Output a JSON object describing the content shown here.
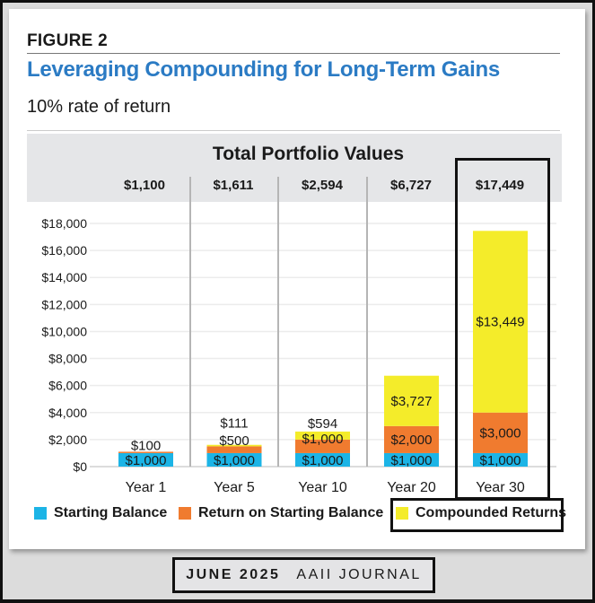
{
  "figure_label": "FIGURE 2",
  "title": "Leveraging Compounding for Long-Term Gains",
  "subtitle": "10% rate of return",
  "footer": {
    "issue": "JUNE 2025",
    "publication": "AAII JOURNAL"
  },
  "colors": {
    "starting_balance": "#1cb4e6",
    "return_on_starting": "#f07b2f",
    "compounded": "#f4ec2a",
    "title_blue": "#2b7bc4"
  },
  "chart_data": {
    "type": "bar",
    "stacked": true,
    "title": "Total Portfolio Values",
    "categories": [
      "Year 1",
      "Year 5",
      "Year 10",
      "Year 20",
      "Year 30"
    ],
    "totals": [
      "$1,100",
      "$1,611",
      "$2,594",
      "$6,727",
      "$17,449"
    ],
    "series": [
      {
        "name": "Starting Balance",
        "color": "#1cb4e6",
        "values": [
          1000,
          1000,
          1000,
          1000,
          1000
        ],
        "labels": [
          "$1,000",
          "$1,000",
          "$1,000",
          "$1,000",
          "$1,000"
        ]
      },
      {
        "name": "Return on Starting Balance",
        "color": "#f07b2f",
        "values": [
          100,
          500,
          1000,
          2000,
          3000
        ],
        "labels": [
          "$100",
          "$500",
          "$1,000",
          "$2,000",
          "$3,000"
        ]
      },
      {
        "name": "Compounded Returns",
        "color": "#f4ec2a",
        "values": [
          0,
          111,
          594,
          3727,
          13449
        ],
        "labels": [
          "",
          "$111",
          "$594",
          "$3,727",
          "$13,449"
        ]
      }
    ],
    "yticks": [
      0,
      2000,
      4000,
      6000,
      8000,
      10000,
      12000,
      14000,
      16000,
      18000
    ],
    "ytick_labels": [
      "$0",
      "$2,000",
      "$4,000",
      "$6,000",
      "$8,000",
      "$10,000",
      "$12,000",
      "$14,000",
      "$16,000",
      "$18,000"
    ],
    "ylim": [
      0,
      18000
    ],
    "xlabel": "",
    "ylabel": "",
    "grid": true,
    "legend_position": "bottom",
    "highlighted_category": "Year 30",
    "highlighted_legend": "Compounded Returns"
  }
}
